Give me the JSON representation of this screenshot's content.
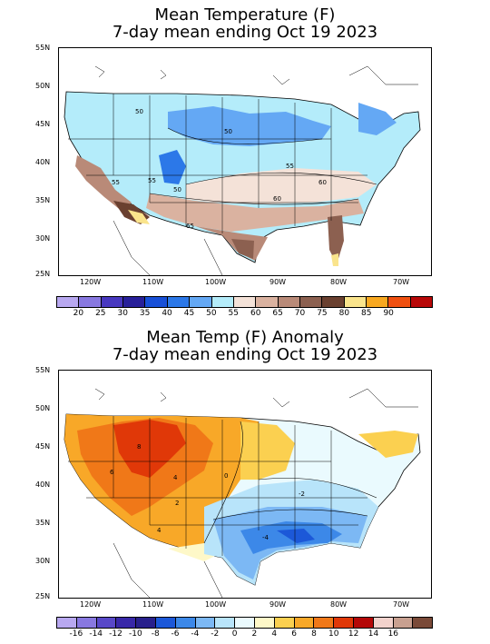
{
  "top": {
    "title_line1": "Mean Temperature (F)",
    "title_line2": "7-day mean ending Oct 19 2023",
    "lat_labels": [
      "55N",
      "50N",
      "45N",
      "40N",
      "35N",
      "30N",
      "25N"
    ],
    "lon_labels": [
      "120W",
      "110W",
      "100W",
      "90W",
      "80W",
      "70W"
    ],
    "contour_labels": [
      "50",
      "50",
      "55",
      "55",
      "60",
      "55",
      "50",
      "65",
      "60"
    ],
    "colorbar": {
      "labels": [
        "20",
        "25",
        "30",
        "35",
        "40",
        "45",
        "50",
        "55",
        "60",
        "65",
        "70",
        "75",
        "80",
        "85",
        "90"
      ],
      "colors": [
        "#b8a8f0",
        "#8878e0",
        "#4838c0",
        "#28209a",
        "#1850d8",
        "#2c78e8",
        "#64a8f4",
        "#b4ecfa",
        "#f4e2d8",
        "#dab2a0",
        "#b98a78",
        "#8c6050",
        "#6a4030",
        "#fae48c",
        "#f8a820",
        "#f05010",
        "#b80808"
      ]
    }
  },
  "bottom": {
    "title_line1": "Mean Temp (F) Anomaly",
    "title_line2": "7-day mean ending Oct 19 2023",
    "lat_labels": [
      "55N",
      "50N",
      "45N",
      "40N",
      "35N",
      "30N",
      "25N"
    ],
    "lon_labels": [
      "120W",
      "110W",
      "100W",
      "90W",
      "80W",
      "70W"
    ],
    "contour_labels": [
      "8",
      "6",
      "4",
      "2",
      "0",
      "-2",
      "-4",
      "4"
    ],
    "colorbar": {
      "labels": [
        "-16",
        "-14",
        "-12",
        "-10",
        "-8",
        "-6",
        "-4",
        "-2",
        "0",
        "2",
        "4",
        "6",
        "8",
        "10",
        "12",
        "14",
        "16"
      ],
      "colors": [
        "#b8a8f0",
        "#8878e0",
        "#5848c8",
        "#3828a8",
        "#28208c",
        "#1c58d8",
        "#3c88e8",
        "#7cb8f4",
        "#b8e4fa",
        "#eafafe",
        "#fef8c8",
        "#fbd050",
        "#f8a828",
        "#f07818",
        "#e03808",
        "#b40808",
        "#f2d2cc",
        "#c8a090",
        "#7a4a38"
      ]
    }
  }
}
